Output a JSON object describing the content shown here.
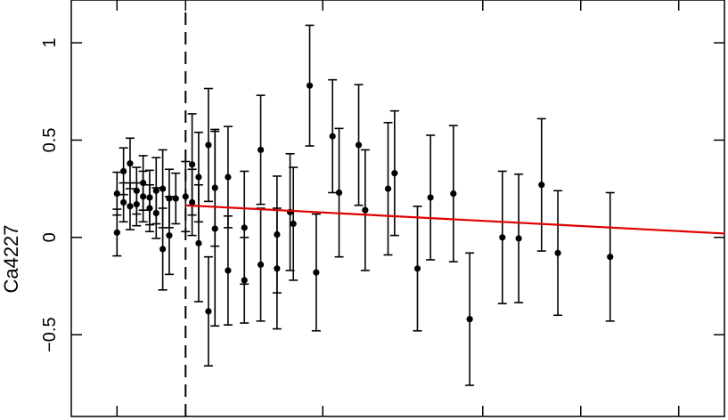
{
  "chart_data": {
    "type": "scatter",
    "title": "",
    "xlabel": "",
    "ylabel": "Ca4227",
    "xlim": [
      0,
      100
    ],
    "ylim": [
      -0.92,
      1.22
    ],
    "y_ticks": [
      -0.5,
      0,
      0.5,
      1
    ],
    "y_tick_labels": [
      "−0.5",
      "0",
      "0.5",
      "1"
    ],
    "x_tick_positions": [
      7,
      17.5,
      38.5,
      63,
      78,
      93
    ],
    "x_tick_labels": [],
    "grid": false,
    "legend": "none",
    "colors": {
      "points": "#000000",
      "fit_line": "#e00000",
      "axes": "#000000"
    },
    "vertical_marker": {
      "x": 17.5,
      "style": "dashed"
    },
    "fit_line": {
      "x": [
        17.5,
        100
      ],
      "y": [
        0.165,
        0.02
      ]
    },
    "series": [
      {
        "points": [
          {
            "x": 7.0,
            "y": 0.025,
            "err": 0.12
          },
          {
            "x": 7.0,
            "y": 0.225,
            "err": 0.11
          },
          {
            "x": 8.0,
            "y": 0.34,
            "err": 0.12
          },
          {
            "x": 8.0,
            "y": 0.18,
            "err": 0.1
          },
          {
            "x": 9.0,
            "y": 0.38,
            "err": 0.13
          },
          {
            "x": 9.0,
            "y": 0.16,
            "err": 0.12
          },
          {
            "x": 10.0,
            "y": 0.24,
            "err": 0.12
          },
          {
            "x": 10.0,
            "y": 0.17,
            "err": 0.11
          },
          {
            "x": 11.0,
            "y": 0.28,
            "err": 0.14
          },
          {
            "x": 11.0,
            "y": 0.21,
            "err": 0.13
          },
          {
            "x": 12.0,
            "y": 0.205,
            "err": 0.14
          },
          {
            "x": 12.0,
            "y": 0.15,
            "err": 0.12
          },
          {
            "x": 13.0,
            "y": 0.24,
            "err": 0.17
          },
          {
            "x": 13.0,
            "y": 0.125,
            "err": 0.13
          },
          {
            "x": 14.0,
            "y": 0.25,
            "err": 0.2
          },
          {
            "x": 14.0,
            "y": -0.06,
            "err": 0.21
          },
          {
            "x": 15.0,
            "y": 0.01,
            "err": 0.2
          },
          {
            "x": 15.0,
            "y": 0.2,
            "err": 0.15
          },
          {
            "x": 16.0,
            "y": 0.2,
            "err": 0.13
          },
          {
            "x": 17.5,
            "y": 0.21,
            "err": 0.18
          },
          {
            "x": 18.5,
            "y": 0.18,
            "err": 0.17
          },
          {
            "x": 18.5,
            "y": 0.375,
            "err": 0.26
          },
          {
            "x": 19.5,
            "y": 0.31,
            "err": 0.23
          },
          {
            "x": 19.5,
            "y": -0.03,
            "err": 0.3
          },
          {
            "x": 21.0,
            "y": 0.475,
            "err": 0.29
          },
          {
            "x": 21.0,
            "y": -0.38,
            "err": 0.28
          },
          {
            "x": 22.0,
            "y": 0.255,
            "err": 0.3
          },
          {
            "x": 22.0,
            "y": 0.045,
            "err": 0.5
          },
          {
            "x": 24.0,
            "y": 0.31,
            "err": 0.26
          },
          {
            "x": 24.0,
            "y": -0.17,
            "err": 0.28
          },
          {
            "x": 26.5,
            "y": 0.05,
            "err": 0.29
          },
          {
            "x": 26.5,
            "y": -0.22,
            "err": 0.22
          },
          {
            "x": 29.0,
            "y": 0.45,
            "err": 0.28
          },
          {
            "x": 29.0,
            "y": -0.14,
            "err": 0.29
          },
          {
            "x": 31.5,
            "y": 0.015,
            "err": 0.3
          },
          {
            "x": 31.5,
            "y": -0.16,
            "err": 0.31
          },
          {
            "x": 33.5,
            "y": 0.13,
            "err": 0.3
          },
          {
            "x": 34.0,
            "y": 0.07,
            "err": 0.29
          },
          {
            "x": 36.5,
            "y": 0.78,
            "err": 0.31
          },
          {
            "x": 37.5,
            "y": -0.18,
            "err": 0.3
          },
          {
            "x": 40.0,
            "y": 0.52,
            "err": 0.29
          },
          {
            "x": 41.0,
            "y": 0.23,
            "err": 0.33
          },
          {
            "x": 44.0,
            "y": 0.475,
            "err": 0.31
          },
          {
            "x": 45.0,
            "y": 0.14,
            "err": 0.31
          },
          {
            "x": 48.5,
            "y": 0.25,
            "err": 0.34
          },
          {
            "x": 49.5,
            "y": 0.33,
            "err": 0.32
          },
          {
            "x": 53.0,
            "y": -0.16,
            "err": 0.32
          },
          {
            "x": 55.0,
            "y": 0.205,
            "err": 0.32
          },
          {
            "x": 58.5,
            "y": 0.225,
            "err": 0.35
          },
          {
            "x": 61.0,
            "y": -0.42,
            "err": 0.34
          },
          {
            "x": 66.0,
            "y": 0.0,
            "err": 0.34
          },
          {
            "x": 68.5,
            "y": -0.005,
            "err": 0.33
          },
          {
            "x": 72.0,
            "y": 0.27,
            "err": 0.34
          },
          {
            "x": 74.5,
            "y": -0.08,
            "err": 0.32
          },
          {
            "x": 82.5,
            "y": -0.1,
            "err": 0.33
          }
        ]
      }
    ]
  }
}
